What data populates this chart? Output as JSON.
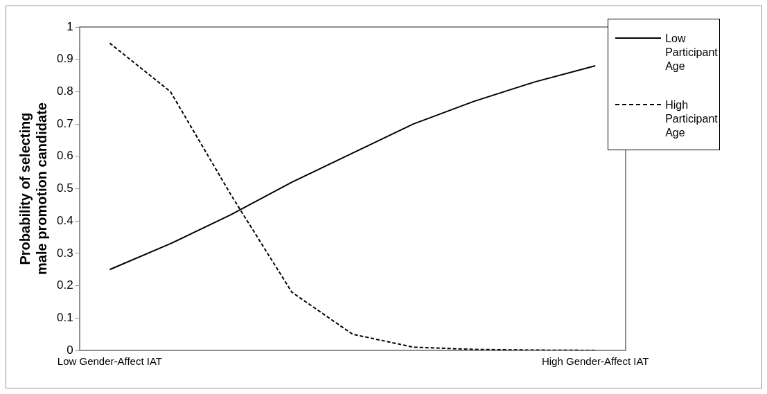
{
  "chart_data": {
    "type": "line",
    "ylabel": "Probability of selecting male promotion candidate",
    "categories": [
      "Low Gender-Affect IAT",
      null,
      null,
      null,
      null,
      null,
      null,
      null,
      "High Gender-Affect IAT"
    ],
    "series": [
      {
        "name": "Low Participant Age",
        "color": "#000000",
        "line_style": "solid",
        "values": [
          0.25,
          0.33,
          0.42,
          0.52,
          0.61,
          0.7,
          0.77,
          0.83,
          0.88
        ]
      },
      {
        "name": "High Participant Age",
        "color": "#000000",
        "line_style": "dashed",
        "values": [
          0.95,
          0.8,
          0.48,
          0.18,
          0.05,
          0.01,
          0.003,
          0.001,
          0
        ]
      }
    ],
    "ylim": [
      0,
      1
    ],
    "yticks": [
      0,
      0.1,
      0.2,
      0.3,
      0.4,
      0.5,
      0.6,
      0.7,
      0.8,
      0.9,
      1
    ],
    "grid": false,
    "legend": "top right",
    "marker": "none"
  }
}
